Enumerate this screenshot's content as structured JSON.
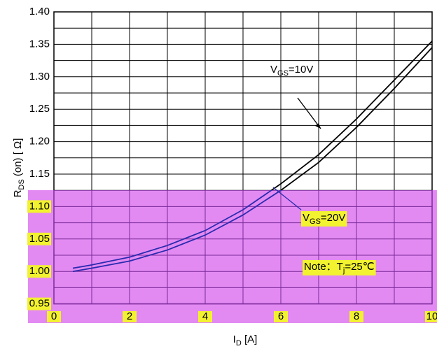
{
  "chart_data": {
    "type": "line",
    "y_label": {
      "main": "R",
      "sub": "DS",
      "rest": " (on)  [ Ω]"
    },
    "x_label": {
      "main": "I",
      "sub": "D",
      "rest": "  [A]"
    },
    "x": [
      0.5,
      1,
      2,
      3,
      4,
      5,
      6,
      7,
      8,
      9,
      10
    ],
    "series": [
      {
        "name": "VGS=10V",
        "color": "#000000",
        "values": [
          1.005,
          1.01,
          1.022,
          1.04,
          1.063,
          1.095,
          1.135,
          1.18,
          1.235,
          1.295,
          1.355
        ]
      },
      {
        "name": "VGS=20V",
        "color": "#000000",
        "values": [
          1.0,
          1.005,
          1.016,
          1.033,
          1.056,
          1.087,
          1.125,
          1.168,
          1.222,
          1.282,
          1.345
        ]
      }
    ],
    "annotations": [
      {
        "main": "V",
        "sub": "GS",
        "rest": "=10V"
      },
      {
        "main": "V",
        "sub": "GS",
        "rest": "=20V"
      },
      {
        "main": "Note：T",
        "sub": "j",
        "rest": "=25℃"
      }
    ],
    "xlim": [
      0,
      10
    ],
    "xticks": [
      0,
      2,
      4,
      6,
      8,
      10
    ],
    "x_minor_ticks": [
      1,
      3,
      5,
      7,
      9
    ],
    "ylim": [
      0.95,
      1.4
    ],
    "yticks": [
      0.95,
      {
        "value": 1.0,
        "label": "1.00"
      },
      1.05,
      {
        "value": 1.1,
        "label": "1.10"
      },
      1.15,
      {
        "value": 1.2,
        "label": "1.20"
      },
      1.25,
      {
        "value": 1.3,
        "label": "1.30"
      },
      1.35,
      {
        "value": 1.4,
        "label": "1.40"
      }
    ],
    "y_minor_ticks": [
      0.975,
      1.025,
      1.075,
      1.125,
      1.175,
      1.225,
      1.275,
      1.325,
      1.375
    ],
    "grid": true
  }
}
